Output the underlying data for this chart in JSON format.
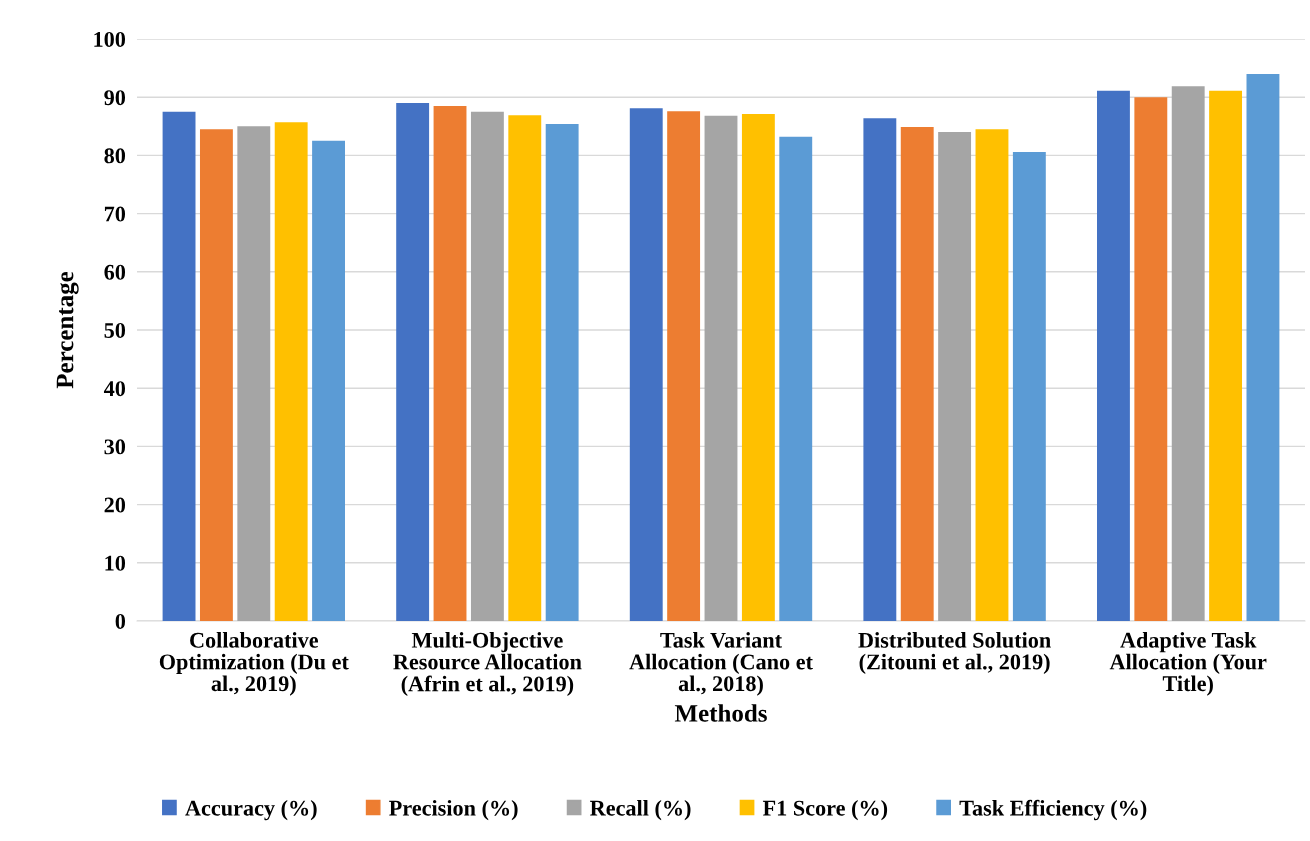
{
  "chart_data": {
    "type": "bar",
    "xlabel": "Methods",
    "ylabel": "Percentage",
    "categories": [
      "Collaborative\nOptimization (Du et\nal., 2019)",
      "Multi-Objective\nResource Allocation\n(Afrin et al., 2019)",
      "Task Variant\nAllocation (Cano et\nal., 2018)",
      "Distributed Solution\n(Zitouni et al., 2019)",
      "Adaptive Task\nAllocation (Your\nTitle)"
    ],
    "series": [
      {
        "name": "Accuracy (%)",
        "color": "#4472c4",
        "values": [
          87.5,
          89.0,
          88.1,
          86.4,
          91.1
        ]
      },
      {
        "name": "Precision (%)",
        "color": "#ed7d31",
        "values": [
          84.5,
          88.5,
          87.6,
          84.9,
          90.0
        ]
      },
      {
        "name": "Recall (%)",
        "color": "#a5a5a5",
        "values": [
          85.0,
          87.5,
          86.8,
          84.0,
          91.9
        ]
      },
      {
        "name": "F1 Score (%)",
        "color": "#ffc000",
        "values": [
          85.7,
          86.9,
          87.1,
          84.5,
          91.1
        ]
      },
      {
        "name": "Task Efficiency (%)",
        "color": "#5b9bd5",
        "values": [
          82.5,
          85.4,
          83.2,
          80.6,
          94.0
        ]
      }
    ],
    "ylim": [
      0,
      100
    ],
    "yticks": [
      0,
      10,
      20,
      30,
      40,
      50,
      60,
      70,
      80,
      90,
      100
    ],
    "grid": "y",
    "legend": "bottom"
  }
}
